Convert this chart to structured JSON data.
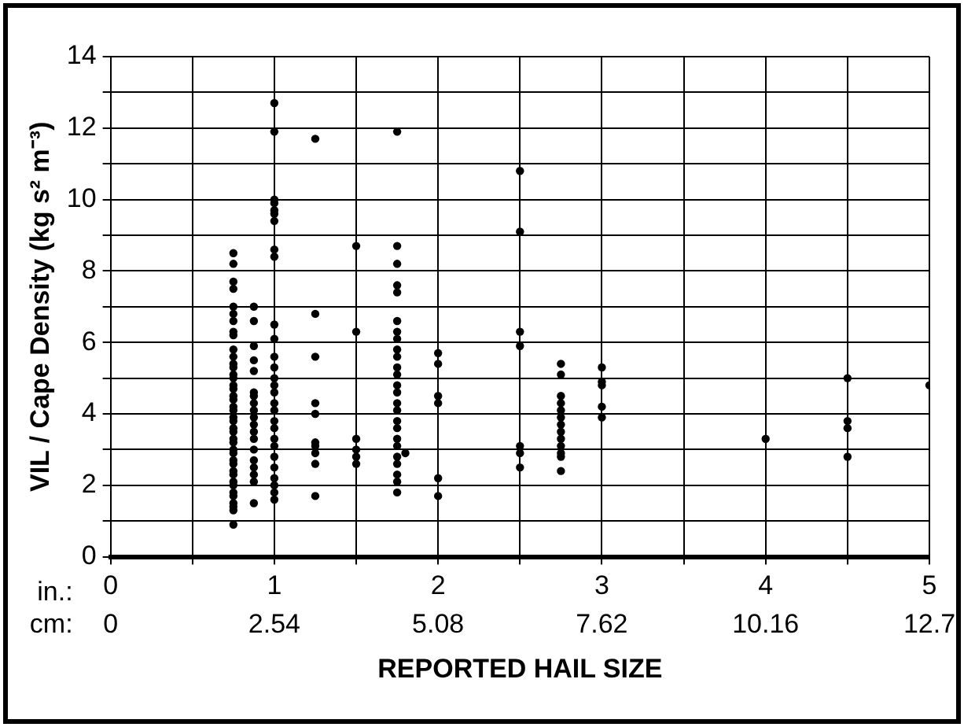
{
  "chart_data": {
    "type": "scatter",
    "ylabel": "VIL / Cape Density (kg s² m⁻³)",
    "xlabel": "REPORTED HAIL SIZE",
    "annotations": [
      "in.:",
      "cm:"
    ],
    "xlim": [
      0,
      5
    ],
    "xticks": [
      0,
      {
        "value": 0.5,
        "label": null
      },
      1,
      {
        "value": 1.5,
        "label": null
      },
      2,
      {
        "value": 2.5,
        "label": null
      },
      3,
      {
        "value": 3.5,
        "label": null
      },
      4,
      {
        "value": 4.5,
        "label": null
      },
      5
    ],
    "x2lim": [
      0,
      12.7
    ],
    "x2ticks": [
      0,
      2.54,
      5.08,
      7.62,
      10.16,
      12.7
    ],
    "ylim": [
      0,
      14
    ],
    "yticks": [
      0,
      {
        "value": 1,
        "label": null
      },
      2,
      {
        "value": 3,
        "label": null
      },
      4,
      {
        "value": 5,
        "label": null
      },
      6,
      {
        "value": 7,
        "label": null
      },
      8,
      {
        "value": 9,
        "label": null
      },
      10,
      {
        "value": 11,
        "label": null
      },
      12,
      {
        "value": 13,
        "label": null
      },
      14
    ],
    "grid": true,
    "marker": "circle",
    "series": [
      {
        "color": "#000000",
        "x": [
          0.75,
          0.75,
          0.75,
          0.75,
          0.75,
          0.75,
          0.75,
          0.75,
          0.75,
          0.75,
          0.75,
          0.75,
          0.75,
          0.75,
          0.75,
          0.75,
          0.75,
          0.75,
          0.75,
          0.75,
          0.75,
          0.75,
          0.75,
          0.75,
          0.75,
          0.75,
          0.75,
          0.75,
          0.75,
          0.75,
          0.75,
          0.75,
          0.75,
          0.75,
          0.75,
          0.75,
          0.75,
          0.75,
          0.75,
          0.75,
          0.75,
          0.875,
          0.875,
          0.875,
          0.875,
          0.875,
          0.875,
          0.875,
          0.875,
          0.875,
          0.875,
          0.875,
          0.875,
          0.875,
          0.875,
          0.875,
          0.875,
          0.875,
          0.875,
          0.875,
          1,
          1,
          1,
          1,
          1,
          1,
          1,
          1,
          1,
          1,
          1,
          1,
          1,
          1,
          1,
          1,
          1,
          1,
          1,
          1,
          1,
          1,
          1,
          1,
          1,
          1,
          1,
          1,
          1.25,
          1.25,
          1.25,
          1.25,
          1.25,
          1.25,
          1.25,
          1.25,
          1.25,
          1.25,
          1.5,
          1.5,
          1.5,
          1.5,
          1.5,
          1.5,
          1.75,
          1.75,
          1.75,
          1.75,
          1.75,
          1.75,
          1.75,
          1.75,
          1.75,
          1.75,
          1.75,
          1.75,
          1.75,
          1.75,
          1.75,
          1.75,
          1.75,
          1.75,
          1.75,
          1.75,
          1.75,
          1.75,
          1.75,
          1.75,
          1.75,
          1.8,
          2,
          2,
          2,
          2,
          2,
          2,
          2.5,
          2.5,
          2.5,
          2.5,
          2.5,
          2.5,
          2.5,
          2.75,
          2.75,
          2.75,
          2.75,
          2.75,
          2.75,
          2.75,
          2.75,
          2.75,
          2.75,
          2.75,
          2.75,
          2.75,
          3,
          3,
          3,
          3,
          3,
          4,
          4.5,
          4.5,
          4.5,
          4.5,
          5
        ],
        "values": [
          8.5,
          8.2,
          7.7,
          7.5,
          7.0,
          6.8,
          6.6,
          6.3,
          6.2,
          5.8,
          5.6,
          5.4,
          5.3,
          5.1,
          5.0,
          4.8,
          4.7,
          4.5,
          4.4,
          4.2,
          4.1,
          3.9,
          3.8,
          3.6,
          3.5,
          3.3,
          3.2,
          3.0,
          2.9,
          2.7,
          2.6,
          2.4,
          2.3,
          2.1,
          2.0,
          1.8,
          1.7,
          1.5,
          1.4,
          1.3,
          0.9,
          7.0,
          6.6,
          5.9,
          5.5,
          5.2,
          4.6,
          4.5,
          4.3,
          4.1,
          3.9,
          3.7,
          3.5,
          3.3,
          3.0,
          2.7,
          2.5,
          2.3,
          2.1,
          1.5,
          12.7,
          11.9,
          10.0,
          9.9,
          9.7,
          9.6,
          9.4,
          8.6,
          8.4,
          6.5,
          6.1,
          5.6,
          5.3,
          5.0,
          4.8,
          4.6,
          4.3,
          4.1,
          3.8,
          3.6,
          3.3,
          3.1,
          2.8,
          2.5,
          2.2,
          2.0,
          1.8,
          1.6,
          11.7,
          6.8,
          5.6,
          4.3,
          4.0,
          3.2,
          3.1,
          2.9,
          2.6,
          1.7,
          8.7,
          6.3,
          3.3,
          3.0,
          2.8,
          2.6,
          11.9,
          8.7,
          8.2,
          7.6,
          7.4,
          6.6,
          6.3,
          6.1,
          5.8,
          5.6,
          5.3,
          5.1,
          4.8,
          4.6,
          4.3,
          4.1,
          3.8,
          3.6,
          3.3,
          3.1,
          2.8,
          2.6,
          2.3,
          2.1,
          1.8,
          2.9,
          5.7,
          5.4,
          4.5,
          4.3,
          2.2,
          1.7,
          10.8,
          9.1,
          6.3,
          5.9,
          3.1,
          2.9,
          2.5,
          5.4,
          5.1,
          4.5,
          4.3,
          4.1,
          3.9,
          3.7,
          3.5,
          3.3,
          3.1,
          2.9,
          2.8,
          2.4,
          5.3,
          4.9,
          4.8,
          4.2,
          3.9,
          3.3,
          5.0,
          3.8,
          3.6,
          2.8,
          4.8
        ]
      }
    ]
  }
}
